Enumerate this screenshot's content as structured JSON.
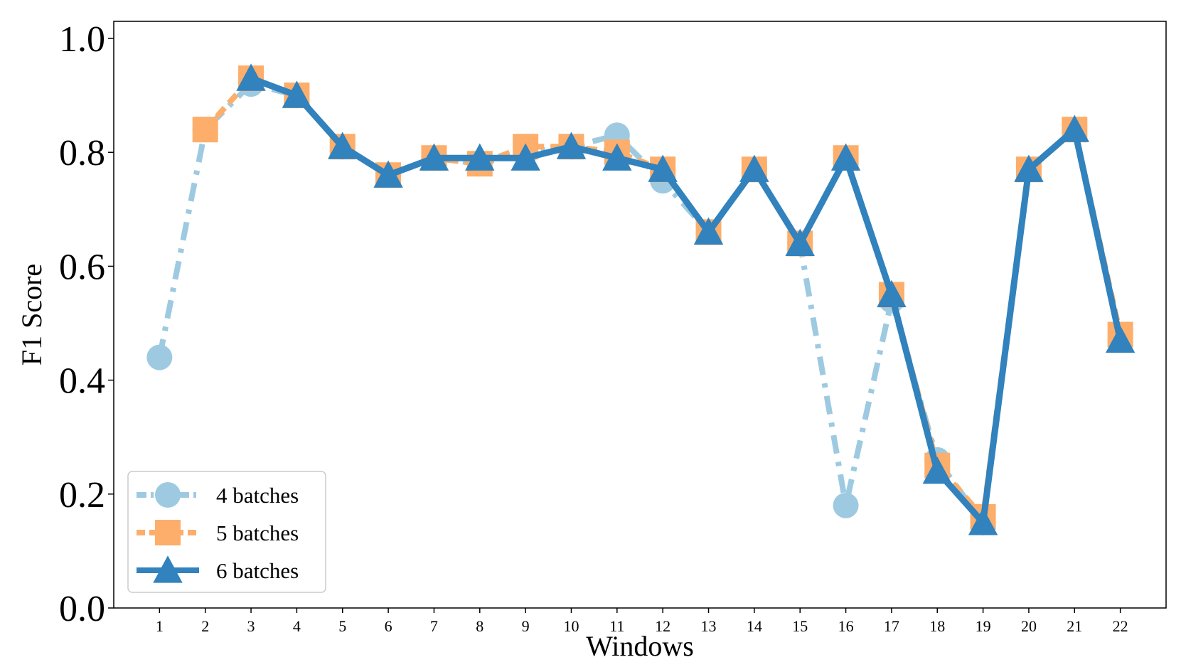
{
  "chart_data": {
    "type": "line",
    "title": "",
    "xlabel": "Windows",
    "ylabel": "F1 Score",
    "ylim": [
      0.0,
      1.03
    ],
    "xlim": [
      0.0,
      23.0
    ],
    "grid": false,
    "legend_position": "lower-left",
    "categories": [
      "1",
      "2",
      "3",
      "4",
      "5",
      "6",
      "7",
      "8",
      "9",
      "10",
      "11",
      "12",
      "13",
      "14",
      "15",
      "16",
      "17",
      "18",
      "19",
      "20",
      "21",
      "22"
    ],
    "yticks": [
      "0.0",
      "0.2",
      "0.4",
      "0.6",
      "0.8",
      "1.0"
    ],
    "series": [
      {
        "name": "4 batches",
        "color": "#9ecae1",
        "marker": "circle",
        "line_style": "dash-dot",
        "x": [
          1,
          2,
          3,
          4,
          5,
          6,
          7,
          8,
          9,
          10,
          11,
          12,
          13,
          14,
          15,
          16,
          17,
          18,
          19
        ],
        "values": [
          0.44,
          0.84,
          0.92,
          0.9,
          0.81,
          0.76,
          0.79,
          0.78,
          0.8,
          0.81,
          0.83,
          0.75,
          0.66,
          0.77,
          0.64,
          0.18,
          0.54,
          0.26,
          0.15
        ]
      },
      {
        "name": "5 batches",
        "color": "#fdae6b",
        "marker": "square",
        "line_style": "dashed",
        "x": [
          2,
          3,
          4,
          5,
          6,
          7,
          8,
          9,
          10,
          11,
          12,
          13,
          14,
          15,
          16,
          17,
          18,
          19,
          20,
          21,
          22
        ],
        "values": [
          0.84,
          0.93,
          0.9,
          0.81,
          0.76,
          0.79,
          0.78,
          0.81,
          0.81,
          0.8,
          0.77,
          0.66,
          0.77,
          0.64,
          0.79,
          0.55,
          0.25,
          0.16,
          0.77,
          0.84,
          0.48
        ]
      },
      {
        "name": "6 batches",
        "color": "#3182bd",
        "marker": "triangle",
        "line_style": "solid",
        "x": [
          3,
          4,
          5,
          6,
          7,
          8,
          9,
          10,
          11,
          12,
          13,
          14,
          15,
          16,
          17,
          18,
          19,
          20,
          21,
          22
        ],
        "values": [
          0.93,
          0.9,
          0.81,
          0.76,
          0.79,
          0.79,
          0.79,
          0.81,
          0.79,
          0.77,
          0.66,
          0.77,
          0.64,
          0.79,
          0.55,
          0.24,
          0.15,
          0.77,
          0.84,
          0.47
        ]
      }
    ]
  }
}
